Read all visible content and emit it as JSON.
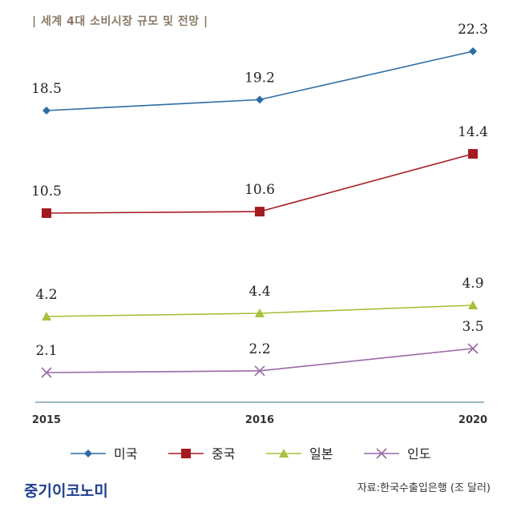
{
  "title": "| 세계 4대 소비시장 규모 및 전망 |",
  "brand": "중기이코노미",
  "source": "자료:한국수출입은행 (조 달러)",
  "chart_data": {
    "type": "line",
    "categories": [
      "2015",
      "2016",
      "2020"
    ],
    "series": [
      {
        "name": "미국",
        "values": [
          18.5,
          19.2,
          22.3
        ],
        "labels": [
          "18.5",
          "19.2",
          "22.3"
        ],
        "color": "#2e6da4",
        "marker": "diamond"
      },
      {
        "name": "중국",
        "values": [
          10.5,
          10.6,
          14.4
        ],
        "labels": [
          "10.5",
          "10.6",
          "14.4"
        ],
        "color": "#a31b21",
        "marker": "square"
      },
      {
        "name": "일본",
        "values": [
          4.2,
          4.4,
          4.9
        ],
        "labels": [
          "4.2",
          "4.4",
          "4.9"
        ],
        "color": "#a6c13a",
        "marker": "triangle"
      },
      {
        "name": "인도",
        "values": [
          2.1,
          2.2,
          3.5
        ],
        "labels": [
          "2.1",
          "2.2",
          "3.5"
        ],
        "color": "#9a6aa6",
        "marker": "x"
      }
    ],
    "axis_color": "#7fa3b8",
    "grid": false,
    "legend_position": "bottom"
  }
}
